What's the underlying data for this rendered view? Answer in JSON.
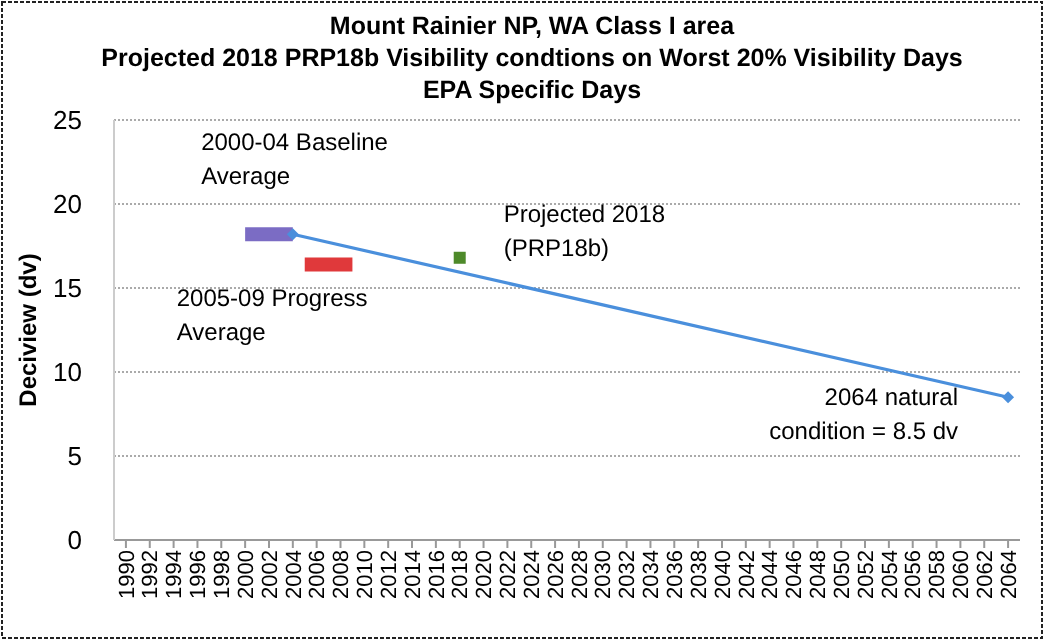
{
  "chart_data": {
    "type": "line",
    "title": "Mount Rainier NP, WA Class I area",
    "subtitle": "Projected 2018 PRP18b Visibility condtions on Worst 20% Visibility Days\nEPA Specific Days",
    "ylabel": "Deciview (dv)",
    "series": [
      {
        "type": "line",
        "color": "#7b6cc4",
        "x": [
          2000,
          2004
        ],
        "values": [
          18.2,
          18.2
        ],
        "marker": "none"
      },
      {
        "type": "line",
        "color": "#e0393b",
        "x": [
          2005,
          2009
        ],
        "values": [
          16.4,
          16.4
        ],
        "marker": "none"
      },
      {
        "type": "scatter",
        "color": "#4e8a2a",
        "x": [
          2018
        ],
        "values": [
          16.8
        ],
        "marker": "square"
      },
      {
        "type": "line",
        "color": "#4a8fdc",
        "x": [
          2004,
          2064
        ],
        "values": [
          18.2,
          8.5
        ],
        "marker": "diamond"
      }
    ],
    "annotations": [
      {
        "text": "2000-04 Baseline Average",
        "x": 2000,
        "y": 18.2
      },
      {
        "text": "2005-09 Progress Average",
        "x": 2005,
        "y": 16.4
      },
      {
        "text": "Projected 2018 (PRP18b)",
        "x": 2018,
        "y": 16.8
      },
      {
        "text": "2064 natural condition = 8.5 dv",
        "x": 2064,
        "y": 8.5
      }
    ],
    "xlim": [
      1989,
      2065
    ],
    "xticks": [
      1990,
      1992,
      1994,
      1996,
      1998,
      2000,
      2002,
      2004,
      2006,
      2008,
      2010,
      2012,
      2014,
      2016,
      2018,
      2020,
      2022,
      2024,
      2026,
      2028,
      2030,
      2032,
      2034,
      2036,
      2038,
      2040,
      2042,
      2044,
      2046,
      2048,
      2050,
      2052,
      2054,
      2056,
      2058,
      2060,
      2062,
      2064
    ],
    "ylim": [
      0,
      25
    ],
    "yticks": [
      0,
      5,
      10,
      15,
      20,
      25
    ],
    "grid": "y",
    "line_style": "solid"
  }
}
